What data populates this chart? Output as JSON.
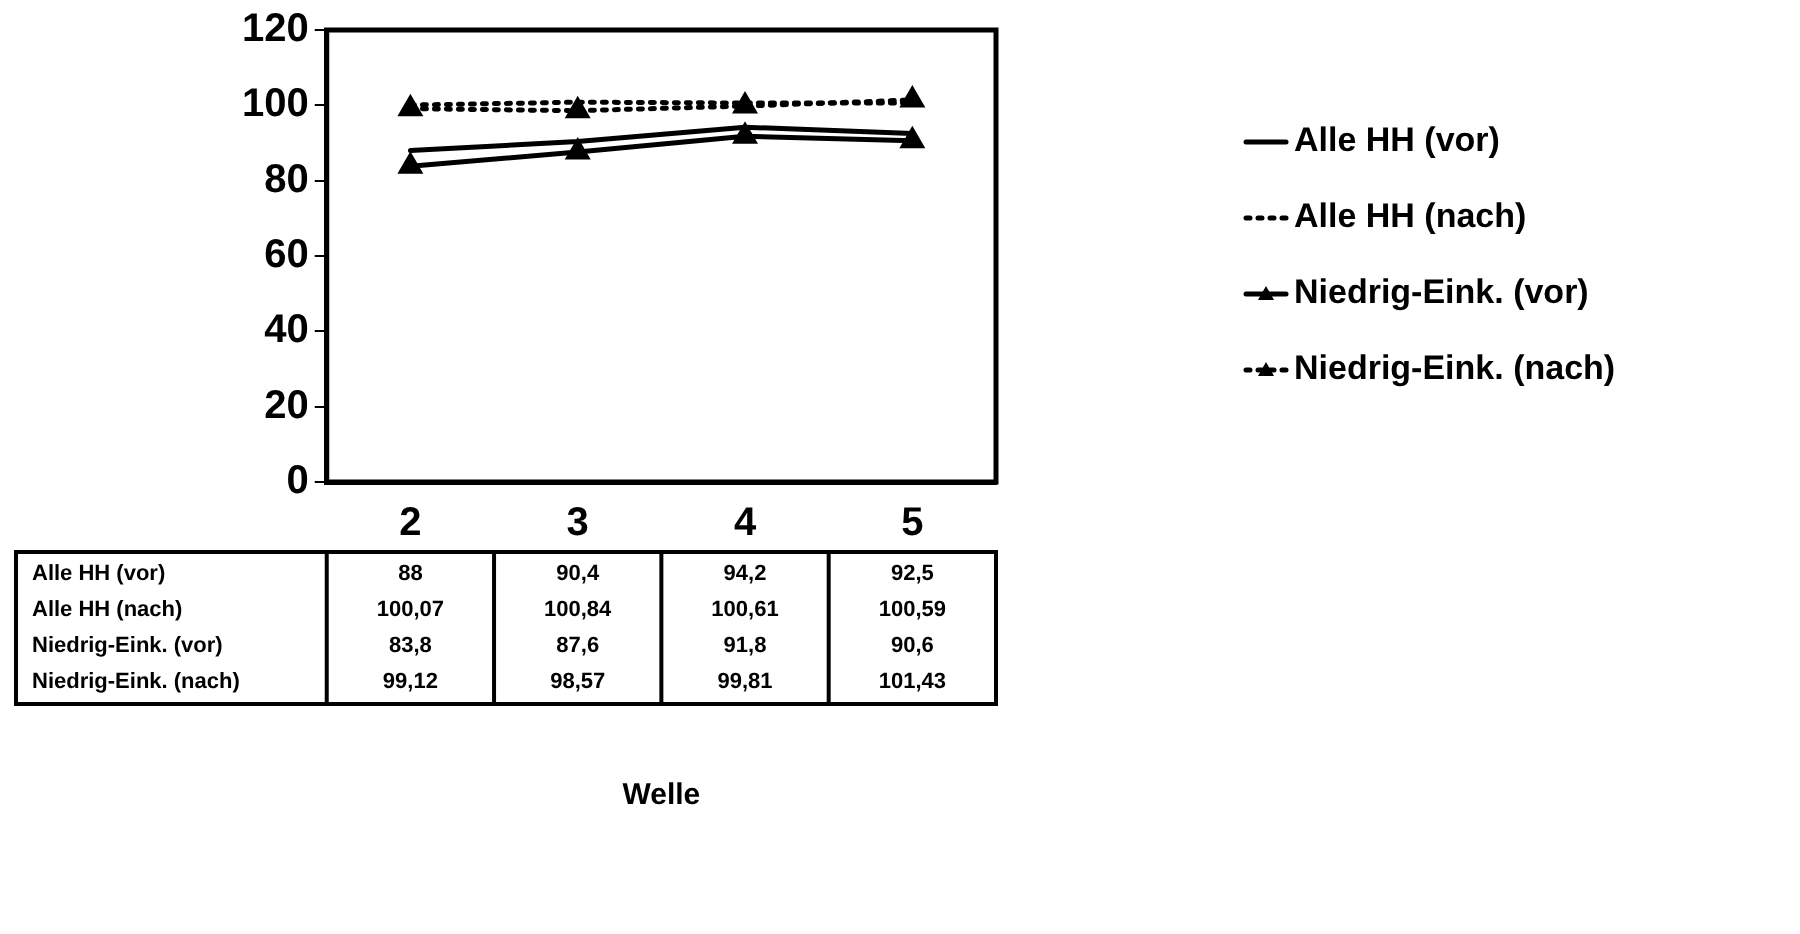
{
  "chart_data": {
    "type": "line",
    "annotations": [
      "Welle"
    ],
    "categories": [
      "2",
      "3",
      "4",
      "5"
    ],
    "ylim": [
      0,
      120
    ],
    "yticks": [
      0,
      20,
      40,
      60,
      80,
      100,
      120
    ],
    "grid": false,
    "legend": "right",
    "data_labels": true,
    "series": [
      {
        "name": "Alle HH (vor)",
        "color": "#000000",
        "line_style": "solid",
        "marker": "none",
        "values": [
          88,
          90.4,
          94.2,
          92.5
        ],
        "value_labels": [
          "88",
          "90,4",
          "94,2",
          "92,5"
        ]
      },
      {
        "name": "Alle HH (nach)",
        "color": "#000000",
        "line_style": "dotted",
        "marker": "none",
        "values": [
          100.07,
          100.84,
          100.61,
          100.59
        ],
        "value_labels": [
          "100,07",
          "100,84",
          "100,61",
          "100,59"
        ]
      },
      {
        "name": "Niedrig-Eink. (vor)",
        "color": "#000000",
        "line_style": "solid",
        "marker": "triangle",
        "values": [
          83.8,
          87.6,
          91.8,
          90.6
        ],
        "value_labels": [
          "83,8",
          "87,6",
          "91,8",
          "90,6"
        ]
      },
      {
        "name": "Niedrig-Eink. (nach)",
        "color": "#000000",
        "line_style": "dotted",
        "marker": "triangle",
        "values": [
          99.12,
          98.57,
          99.81,
          101.43
        ],
        "value_labels": [
          "99,12",
          "98,57",
          "99,81",
          "101,43"
        ]
      }
    ]
  }
}
